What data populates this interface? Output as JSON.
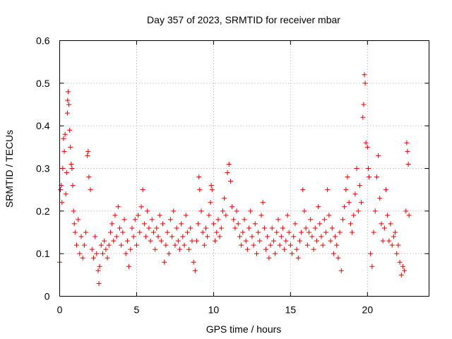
{
  "chart_data": {
    "type": "scatter",
    "title": "Day 357 of 2023, SRMTID for receiver mbar",
    "xlabel": "GPS time / hours",
    "ylabel": "SRMTID / TECUs",
    "xlim": [
      0,
      24
    ],
    "ylim": [
      0,
      0.6
    ],
    "xticks": [
      0,
      5,
      10,
      15,
      20
    ],
    "yticks": [
      0,
      0.1,
      0.2,
      0.3,
      0.4,
      0.5,
      0.6
    ],
    "xtick_labels": [
      "0",
      "5",
      "10",
      "15",
      "20"
    ],
    "ytick_labels": [
      "0",
      "0.1",
      "0.2",
      "0.3",
      "0.4",
      "0.5",
      "0.6"
    ],
    "grid": true,
    "marker": "+",
    "series": [
      {
        "name": "SRMTID",
        "color": "#e00000",
        "points": [
          [
            0.0,
            0.08
          ],
          [
            0.05,
            0.25
          ],
          [
            0.1,
            0.26
          ],
          [
            0.15,
            0.22
          ],
          [
            0.2,
            0.3
          ],
          [
            0.25,
            0.37
          ],
          [
            0.3,
            0.34
          ],
          [
            0.35,
            0.38
          ],
          [
            0.4,
            0.24
          ],
          [
            0.45,
            0.29
          ],
          [
            0.5,
            0.43
          ],
          [
            0.52,
            0.46
          ],
          [
            0.55,
            0.48
          ],
          [
            0.6,
            0.45
          ],
          [
            0.65,
            0.39
          ],
          [
            0.7,
            0.35
          ],
          [
            0.75,
            0.31
          ],
          [
            0.8,
            0.3
          ],
          [
            0.85,
            0.26
          ],
          [
            0.9,
            0.2
          ],
          [
            0.95,
            0.17
          ],
          [
            1.0,
            0.15
          ],
          [
            1.1,
            0.12
          ],
          [
            1.2,
            0.18
          ],
          [
            1.3,
            0.1
          ],
          [
            1.4,
            0.14
          ],
          [
            1.5,
            0.09
          ],
          [
            1.6,
            0.12
          ],
          [
            1.7,
            0.15
          ],
          [
            1.8,
            0.33
          ],
          [
            1.85,
            0.34
          ],
          [
            1.9,
            0.28
          ],
          [
            2.0,
            0.25
          ],
          [
            2.1,
            0.11
          ],
          [
            2.2,
            0.09
          ],
          [
            2.3,
            0.14
          ],
          [
            2.4,
            0.1
          ],
          [
            2.5,
            0.06
          ],
          [
            2.55,
            0.03
          ],
          [
            2.6,
            0.07
          ],
          [
            2.7,
            0.12
          ],
          [
            2.8,
            0.1
          ],
          [
            2.9,
            0.13
          ],
          [
            3.0,
            0.11
          ],
          [
            3.1,
            0.09
          ],
          [
            3.2,
            0.12
          ],
          [
            3.3,
            0.15
          ],
          [
            3.4,
            0.17
          ],
          [
            3.5,
            0.13
          ],
          [
            3.6,
            0.19
          ],
          [
            3.7,
            0.14
          ],
          [
            3.8,
            0.21
          ],
          [
            3.9,
            0.16
          ],
          [
            4.0,
            0.12
          ],
          [
            4.1,
            0.15
          ],
          [
            4.2,
            0.18
          ],
          [
            4.3,
            0.1
          ],
          [
            4.4,
            0.13
          ],
          [
            4.5,
            0.07
          ],
          [
            4.6,
            0.11
          ],
          [
            4.7,
            0.16
          ],
          [
            4.8,
            0.14
          ],
          [
            4.9,
            0.18
          ],
          [
            5.0,
            0.12
          ],
          [
            5.1,
            0.19
          ],
          [
            5.2,
            0.15
          ],
          [
            5.3,
            0.21
          ],
          [
            5.4,
            0.25
          ],
          [
            5.5,
            0.17
          ],
          [
            5.6,
            0.14
          ],
          [
            5.7,
            0.2
          ],
          [
            5.8,
            0.16
          ],
          [
            5.9,
            0.13
          ],
          [
            6.0,
            0.18
          ],
          [
            6.1,
            0.15
          ],
          [
            6.2,
            0.11
          ],
          [
            6.3,
            0.16
          ],
          [
            6.4,
            0.14
          ],
          [
            6.5,
            0.19
          ],
          [
            6.6,
            0.13
          ],
          [
            6.7,
            0.17
          ],
          [
            6.8,
            0.08
          ],
          [
            6.9,
            0.12
          ],
          [
            7.0,
            0.15
          ],
          [
            7.1,
            0.1
          ],
          [
            7.2,
            0.18
          ],
          [
            7.3,
            0.14
          ],
          [
            7.4,
            0.2
          ],
          [
            7.5,
            0.12
          ],
          [
            7.6,
            0.16
          ],
          [
            7.7,
            0.13
          ],
          [
            7.8,
            0.11
          ],
          [
            7.9,
            0.17
          ],
          [
            8.0,
            0.14
          ],
          [
            8.1,
            0.12
          ],
          [
            8.2,
            0.19
          ],
          [
            8.3,
            0.15
          ],
          [
            8.4,
            0.11
          ],
          [
            8.5,
            0.16
          ],
          [
            8.6,
            0.13
          ],
          [
            8.7,
            0.08
          ],
          [
            8.8,
            0.06
          ],
          [
            8.9,
            0.13
          ],
          [
            9.0,
            0.17
          ],
          [
            9.05,
            0.28
          ],
          [
            9.1,
            0.25
          ],
          [
            9.2,
            0.2
          ],
          [
            9.3,
            0.15
          ],
          [
            9.4,
            0.12
          ],
          [
            9.5,
            0.16
          ],
          [
            9.6,
            0.14
          ],
          [
            9.7,
            0.19
          ],
          [
            9.8,
            0.22
          ],
          [
            9.85,
            0.26
          ],
          [
            9.9,
            0.25
          ],
          [
            10.0,
            0.17
          ],
          [
            10.1,
            0.13
          ],
          [
            10.2,
            0.15
          ],
          [
            10.3,
            0.18
          ],
          [
            10.4,
            0.14
          ],
          [
            10.5,
            0.16
          ],
          [
            10.6,
            0.2
          ],
          [
            10.7,
            0.23
          ],
          [
            10.8,
            0.19
          ],
          [
            10.9,
            0.29
          ],
          [
            11.0,
            0.31
          ],
          [
            11.1,
            0.27
          ],
          [
            11.2,
            0.21
          ],
          [
            11.3,
            0.18
          ],
          [
            11.4,
            0.16
          ],
          [
            11.5,
            0.2
          ],
          [
            11.6,
            0.17
          ],
          [
            11.7,
            0.14
          ],
          [
            11.8,
            0.12
          ],
          [
            11.9,
            0.15
          ],
          [
            12.0,
            0.18
          ],
          [
            12.1,
            0.13
          ],
          [
            12.2,
            0.11
          ],
          [
            12.3,
            0.16
          ],
          [
            12.4,
            0.2
          ],
          [
            12.5,
            0.14
          ],
          [
            12.6,
            0.12
          ],
          [
            12.7,
            0.17
          ],
          [
            12.8,
            0.1
          ],
          [
            12.9,
            0.15
          ],
          [
            13.0,
            0.13
          ],
          [
            13.1,
            0.19
          ],
          [
            13.2,
            0.22
          ],
          [
            13.3,
            0.16
          ],
          [
            13.4,
            0.11
          ],
          [
            13.5,
            0.14
          ],
          [
            13.6,
            0.09
          ],
          [
            13.7,
            0.12
          ],
          [
            13.8,
            0.16
          ],
          [
            13.9,
            0.13
          ],
          [
            14.0,
            0.1
          ],
          [
            14.1,
            0.15
          ],
          [
            14.2,
            0.18
          ],
          [
            14.3,
            0.12
          ],
          [
            14.4,
            0.14
          ],
          [
            14.5,
            0.16
          ],
          [
            14.6,
            0.11
          ],
          [
            14.7,
            0.13
          ],
          [
            14.8,
            0.19
          ],
          [
            14.9,
            0.15
          ],
          [
            15.0,
            0.12
          ],
          [
            15.1,
            0.1
          ],
          [
            15.2,
            0.14
          ],
          [
            15.3,
            0.17
          ],
          [
            15.4,
            0.11
          ],
          [
            15.5,
            0.09
          ],
          [
            15.6,
            0.13
          ],
          [
            15.7,
            0.15
          ],
          [
            15.8,
            0.25
          ],
          [
            15.9,
            0.2
          ],
          [
            16.0,
            0.16
          ],
          [
            16.1,
            0.12
          ],
          [
            16.2,
            0.15
          ],
          [
            16.3,
            0.18
          ],
          [
            16.4,
            0.14
          ],
          [
            16.5,
            0.11
          ],
          [
            16.6,
            0.16
          ],
          [
            16.7,
            0.13
          ],
          [
            16.8,
            0.21
          ],
          [
            16.9,
            0.17
          ],
          [
            17.0,
            0.14
          ],
          [
            17.1,
            0.12
          ],
          [
            17.2,
            0.18
          ],
          [
            17.3,
            0.15
          ],
          [
            17.4,
            0.25
          ],
          [
            17.5,
            0.19
          ],
          [
            17.6,
            0.13
          ],
          [
            17.7,
            0.16
          ],
          [
            17.8,
            0.1
          ],
          [
            17.9,
            0.14
          ],
          [
            18.0,
            0.12
          ],
          [
            18.1,
            0.09
          ],
          [
            18.2,
            0.15
          ],
          [
            18.3,
            0.06
          ],
          [
            18.4,
            0.18
          ],
          [
            18.5,
            0.21
          ],
          [
            18.6,
            0.25
          ],
          [
            18.7,
            0.28
          ],
          [
            18.8,
            0.22
          ],
          [
            18.9,
            0.17
          ],
          [
            19.0,
            0.15
          ],
          [
            19.1,
            0.19
          ],
          [
            19.2,
            0.24
          ],
          [
            19.3,
            0.3
          ],
          [
            19.4,
            0.2
          ],
          [
            19.5,
            0.26
          ],
          [
            19.6,
            0.22
          ],
          [
            19.7,
            0.42
          ],
          [
            19.75,
            0.45
          ],
          [
            19.8,
            0.52
          ],
          [
            19.85,
            0.5
          ],
          [
            19.9,
            0.36
          ],
          [
            20.0,
            0.35
          ],
          [
            20.05,
            0.3
          ],
          [
            20.1,
            0.28
          ],
          [
            20.2,
            0.1
          ],
          [
            20.3,
            0.07
          ],
          [
            20.4,
            0.15
          ],
          [
            20.5,
            0.2
          ],
          [
            20.6,
            0.28
          ],
          [
            20.7,
            0.33
          ],
          [
            20.8,
            0.23
          ],
          [
            20.9,
            0.17
          ],
          [
            21.0,
            0.13
          ],
          [
            21.1,
            0.16
          ],
          [
            21.2,
            0.25
          ],
          [
            21.3,
            0.19
          ],
          [
            21.4,
            0.13
          ],
          [
            21.5,
            0.17
          ],
          [
            21.6,
            0.12
          ],
          [
            21.7,
            0.14
          ],
          [
            21.8,
            0.15
          ],
          [
            21.9,
            0.1
          ],
          [
            22.0,
            0.12
          ],
          [
            22.1,
            0.08
          ],
          [
            22.2,
            0.05
          ],
          [
            22.3,
            0.07
          ],
          [
            22.4,
            0.06
          ],
          [
            22.5,
            0.2
          ],
          [
            22.55,
            0.36
          ],
          [
            22.6,
            0.34
          ],
          [
            22.65,
            0.31
          ],
          [
            22.7,
            0.19
          ]
        ]
      }
    ]
  }
}
